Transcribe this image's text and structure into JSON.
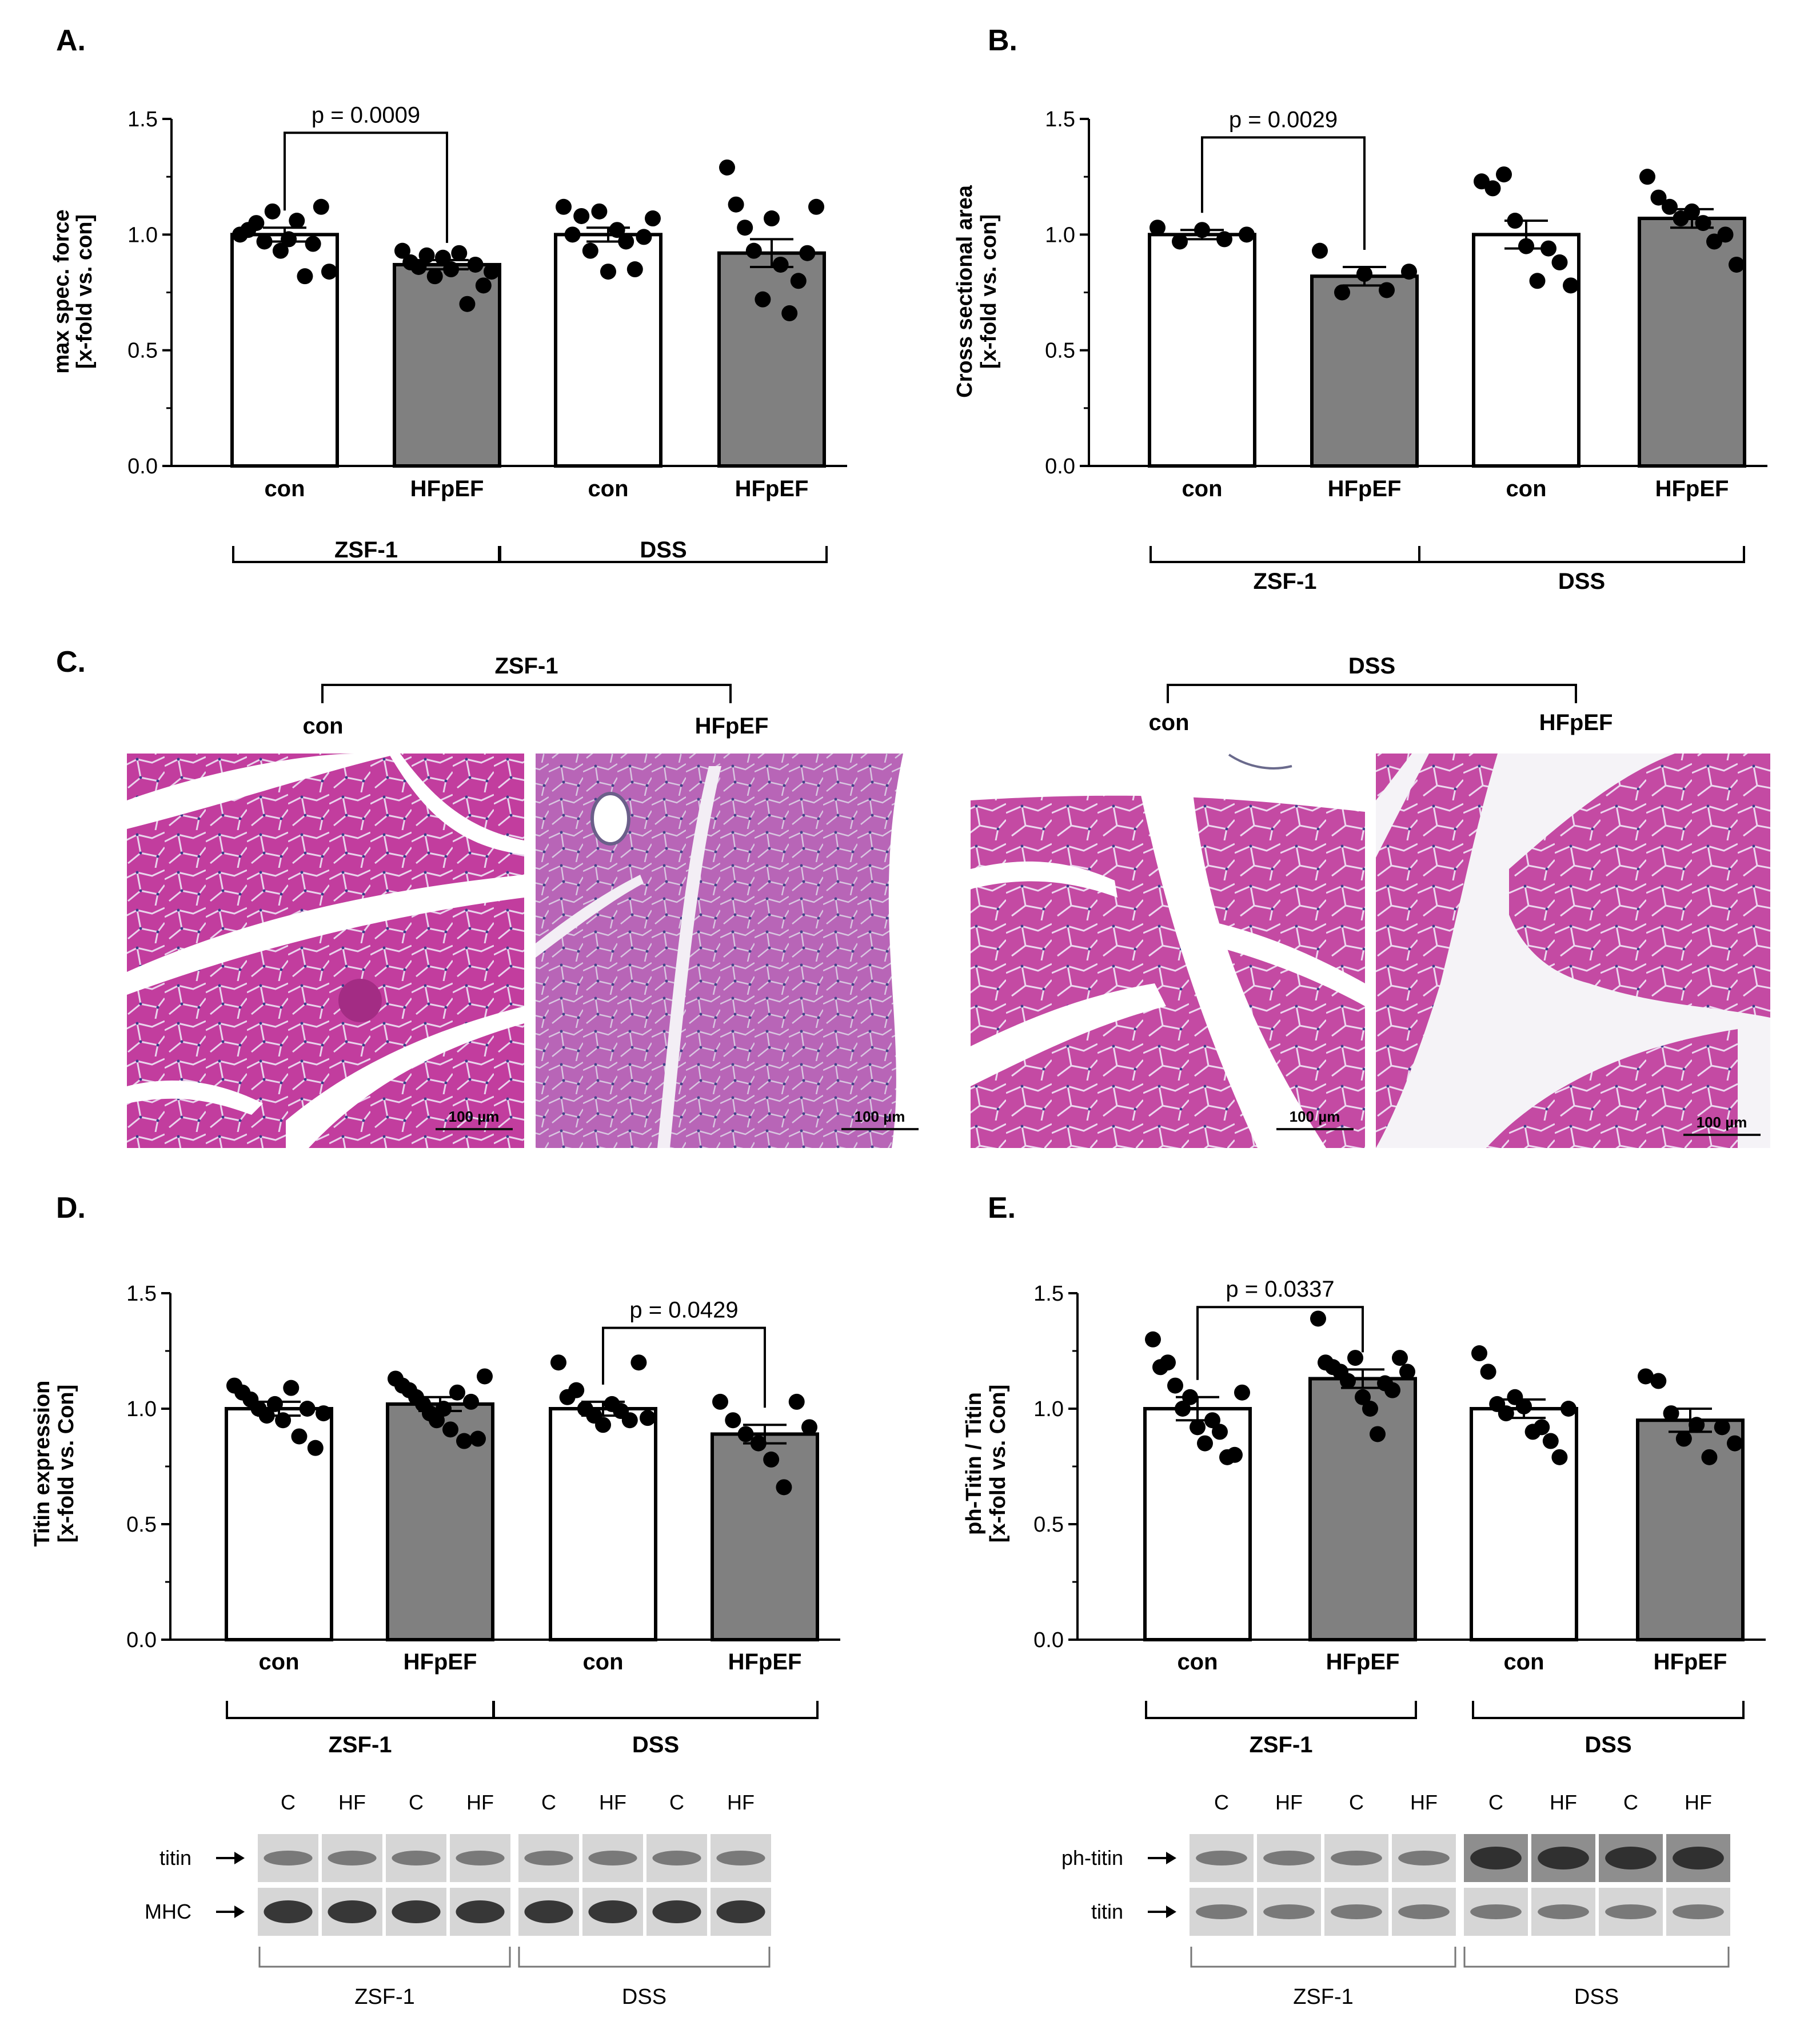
{
  "figure": {
    "panels": {
      "A": {
        "label": "A."
      },
      "B": {
        "label": "B."
      },
      "C": {
        "label": "C."
      },
      "D": {
        "label": "D."
      },
      "E": {
        "label": "E."
      }
    },
    "histology": {
      "groups": [
        {
          "name": "ZSF-1",
          "con": "con",
          "hf": "HFpEF"
        },
        {
          "name": "DSS",
          "con": "con",
          "hf": "HFpEF"
        }
      ],
      "scale_bar": "100 µm",
      "images": [
        "ZSF-1 con",
        "ZSF-1 HFpEF",
        "DSS con",
        "DSS HFpEF"
      ]
    },
    "blots": {
      "D": {
        "lanes": [
          "C",
          "HF",
          "C",
          "HF",
          "C",
          "HF",
          "C",
          "HF"
        ],
        "rows": [
          "titin",
          "MHC"
        ],
        "groups": [
          "ZSF-1",
          "DSS"
        ]
      },
      "E": {
        "lanes": [
          "C",
          "HF",
          "C",
          "HF",
          "C",
          "HF",
          "C",
          "HF"
        ],
        "rows": [
          "ph-titin",
          "titin"
        ],
        "groups": [
          "ZSF-1",
          "DSS"
        ]
      }
    }
  },
  "chart_data": [
    {
      "panel": "A.",
      "type": "bar",
      "ylabel": [
        "max spec. force",
        "[x-fold vs. con]"
      ],
      "ylim": [
        0,
        1.5
      ],
      "yticks": [
        "0.0",
        "0.5",
        "1.0",
        "1.5"
      ],
      "categories": [
        "con",
        "HFpEF",
        "con",
        "HFpEF"
      ],
      "groups": [
        "ZSF-1",
        "DSS"
      ],
      "fills": [
        "#ffffff",
        "#808080",
        "#ffffff",
        "#808080"
      ],
      "values": [
        1.0,
        0.87,
        1.0,
        0.92
      ],
      "sem": [
        0.03,
        0.02,
        0.03,
        0.06
      ],
      "points": [
        [
          1.0,
          1.02,
          1.05,
          0.97,
          1.1,
          0.93,
          0.98,
          1.06,
          0.82,
          0.96,
          1.12,
          0.84
        ],
        [
          0.93,
          0.88,
          0.86,
          0.91,
          0.82,
          0.9,
          0.85,
          0.92,
          0.7,
          0.87,
          0.78,
          0.84
        ],
        [
          1.12,
          1.0,
          1.08,
          0.93,
          1.1,
          0.84,
          1.02,
          0.97,
          0.85,
          0.99,
          1.07
        ],
        [
          1.29,
          1.13,
          1.03,
          0.93,
          0.72,
          1.07,
          0.87,
          0.66,
          0.8,
          0.92,
          1.12
        ]
      ],
      "significance": {
        "from": 0,
        "to": 1,
        "label": "p = 0.0009",
        "y": 1.44
      }
    },
    {
      "panel": "B.",
      "type": "bar",
      "ylabel": [
        "Cross sectional area",
        "[x-fold vs. con]"
      ],
      "ylim": [
        0,
        1.5
      ],
      "yticks": [
        "0.0",
        "0.5",
        "1.0",
        "1.5"
      ],
      "categories": [
        "con",
        "HFpEF",
        "con",
        "HFpEF"
      ],
      "groups": [
        "ZSF-1",
        "DSS"
      ],
      "fills": [
        "#ffffff",
        "#808080",
        "#ffffff",
        "#808080"
      ],
      "values": [
        1.0,
        0.82,
        1.0,
        1.07
      ],
      "sem": [
        0.02,
        0.04,
        0.06,
        0.04
      ],
      "points": [
        [
          1.03,
          0.97,
          1.02,
          0.98,
          1.0
        ],
        [
          0.93,
          0.75,
          0.83,
          0.76,
          0.84
        ],
        [
          1.23,
          1.2,
          1.26,
          1.06,
          0.95,
          0.8,
          0.94,
          0.88,
          0.78
        ],
        [
          1.25,
          1.16,
          1.12,
          1.07,
          1.1,
          1.05,
          0.97,
          1.0,
          0.87
        ]
      ],
      "significance": {
        "from": 0,
        "to": 1,
        "label": "p = 0.0029",
        "y": 1.42
      }
    },
    {
      "panel": "D.",
      "type": "bar",
      "ylabel": [
        "Titin expression",
        "[x-fold vs. Con]"
      ],
      "ylim": [
        0,
        1.5
      ],
      "yticks": [
        "0.0",
        "0.5",
        "1.0",
        "1.5"
      ],
      "categories": [
        "con",
        "HFpEF",
        "con",
        "HFpEF"
      ],
      "groups": [
        "ZSF-1",
        "DSS"
      ],
      "fills": [
        "#ffffff",
        "#808080",
        "#ffffff",
        "#808080"
      ],
      "values": [
        1.0,
        1.02,
        1.0,
        0.89
      ],
      "sem": [
        0.03,
        0.03,
        0.03,
        0.04
      ],
      "points": [
        [
          1.1,
          1.07,
          1.04,
          1.0,
          0.97,
          1.02,
          0.95,
          1.09,
          0.88,
          1.0,
          0.83,
          0.98
        ],
        [
          1.13,
          1.1,
          1.08,
          1.05,
          1.02,
          0.98,
          0.95,
          1.0,
          0.91,
          1.07,
          0.86,
          1.03,
          0.87,
          1.14
        ],
        [
          1.2,
          1.05,
          1.08,
          1.0,
          0.97,
          0.93,
          1.02,
          0.99,
          0.95,
          1.2,
          0.96
        ],
        [
          1.03,
          0.95,
          0.89,
          0.85,
          0.78,
          0.66,
          1.03,
          0.92
        ]
      ],
      "significance": {
        "from": 2,
        "to": 3,
        "label": "p = 0.0429",
        "y": 1.35
      }
    },
    {
      "panel": "E.",
      "type": "bar",
      "ylabel": [
        "ph-Titin / Titin",
        "[x-fold vs. Con]"
      ],
      "ylim": [
        0,
        1.5
      ],
      "yticks": [
        "0.0",
        "0.5",
        "1.0",
        "1.5"
      ],
      "categories": [
        "con",
        "HFpEF",
        "con",
        "HFpEF"
      ],
      "groups": [
        "ZSF-1",
        "DSS"
      ],
      "fills": [
        "#ffffff",
        "#808080",
        "#ffffff",
        "#808080"
      ],
      "values": [
        1.0,
        1.13,
        1.0,
        0.95
      ],
      "sem": [
        0.05,
        0.04,
        0.04,
        0.05
      ],
      "points": [
        [
          1.3,
          1.18,
          1.2,
          1.1,
          1.0,
          1.05,
          0.92,
          0.85,
          0.95,
          0.9,
          0.79,
          0.8,
          1.07
        ],
        [
          1.39,
          1.2,
          1.18,
          1.16,
          1.12,
          1.22,
          1.05,
          1.0,
          0.89,
          1.11,
          1.08,
          1.22,
          1.16
        ],
        [
          1.24,
          1.16,
          1.02,
          0.98,
          1.05,
          1.01,
          0.9,
          0.92,
          0.86,
          0.79,
          1.0
        ],
        [
          1.14,
          1.12,
          0.98,
          0.87,
          0.93,
          0.79,
          0.92,
          0.85
        ]
      ],
      "significance": {
        "from": 0,
        "to": 1,
        "label": "p = 0.0337",
        "y": 1.44
      }
    }
  ]
}
